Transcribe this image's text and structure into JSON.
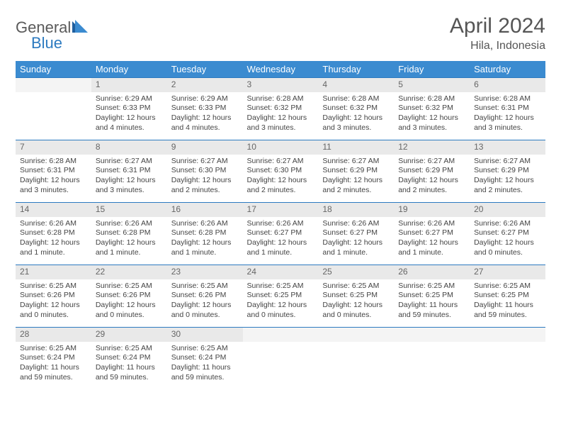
{
  "logo": {
    "general": "General",
    "blue": "Blue"
  },
  "title": "April 2024",
  "location": "Hila, Indonesia",
  "colors": {
    "header_bg": "#3b8bd0",
    "header_text": "#ffffff",
    "daynum_bg": "#e9e9e9",
    "daynum_text": "#666666",
    "border": "#2c7ac0",
    "body_text": "#444444",
    "logo_gray": "#5a5a5a",
    "logo_blue": "#2c7ac0",
    "title_color": "#555555"
  },
  "typography": {
    "title_fontsize": 30,
    "location_fontsize": 16,
    "header_fontsize": 13,
    "daynum_fontsize": 12,
    "body_fontsize": 10.5
  },
  "weekdays": [
    "Sunday",
    "Monday",
    "Tuesday",
    "Wednesday",
    "Thursday",
    "Friday",
    "Saturday"
  ],
  "weeks": [
    [
      {
        "n": "",
        "lines": []
      },
      {
        "n": "1",
        "lines": [
          "Sunrise: 6:29 AM",
          "Sunset: 6:33 PM",
          "Daylight: 12 hours and 4 minutes."
        ]
      },
      {
        "n": "2",
        "lines": [
          "Sunrise: 6:29 AM",
          "Sunset: 6:33 PM",
          "Daylight: 12 hours and 4 minutes."
        ]
      },
      {
        "n": "3",
        "lines": [
          "Sunrise: 6:28 AM",
          "Sunset: 6:32 PM",
          "Daylight: 12 hours and 3 minutes."
        ]
      },
      {
        "n": "4",
        "lines": [
          "Sunrise: 6:28 AM",
          "Sunset: 6:32 PM",
          "Daylight: 12 hours and 3 minutes."
        ]
      },
      {
        "n": "5",
        "lines": [
          "Sunrise: 6:28 AM",
          "Sunset: 6:32 PM",
          "Daylight: 12 hours and 3 minutes."
        ]
      },
      {
        "n": "6",
        "lines": [
          "Sunrise: 6:28 AM",
          "Sunset: 6:31 PM",
          "Daylight: 12 hours and 3 minutes."
        ]
      }
    ],
    [
      {
        "n": "7",
        "lines": [
          "Sunrise: 6:28 AM",
          "Sunset: 6:31 PM",
          "Daylight: 12 hours and 3 minutes."
        ]
      },
      {
        "n": "8",
        "lines": [
          "Sunrise: 6:27 AM",
          "Sunset: 6:31 PM",
          "Daylight: 12 hours and 3 minutes."
        ]
      },
      {
        "n": "9",
        "lines": [
          "Sunrise: 6:27 AM",
          "Sunset: 6:30 PM",
          "Daylight: 12 hours and 2 minutes."
        ]
      },
      {
        "n": "10",
        "lines": [
          "Sunrise: 6:27 AM",
          "Sunset: 6:30 PM",
          "Daylight: 12 hours and 2 minutes."
        ]
      },
      {
        "n": "11",
        "lines": [
          "Sunrise: 6:27 AM",
          "Sunset: 6:29 PM",
          "Daylight: 12 hours and 2 minutes."
        ]
      },
      {
        "n": "12",
        "lines": [
          "Sunrise: 6:27 AM",
          "Sunset: 6:29 PM",
          "Daylight: 12 hours and 2 minutes."
        ]
      },
      {
        "n": "13",
        "lines": [
          "Sunrise: 6:27 AM",
          "Sunset: 6:29 PM",
          "Daylight: 12 hours and 2 minutes."
        ]
      }
    ],
    [
      {
        "n": "14",
        "lines": [
          "Sunrise: 6:26 AM",
          "Sunset: 6:28 PM",
          "Daylight: 12 hours and 1 minute."
        ]
      },
      {
        "n": "15",
        "lines": [
          "Sunrise: 6:26 AM",
          "Sunset: 6:28 PM",
          "Daylight: 12 hours and 1 minute."
        ]
      },
      {
        "n": "16",
        "lines": [
          "Sunrise: 6:26 AM",
          "Sunset: 6:28 PM",
          "Daylight: 12 hours and 1 minute."
        ]
      },
      {
        "n": "17",
        "lines": [
          "Sunrise: 6:26 AM",
          "Sunset: 6:27 PM",
          "Daylight: 12 hours and 1 minute."
        ]
      },
      {
        "n": "18",
        "lines": [
          "Sunrise: 6:26 AM",
          "Sunset: 6:27 PM",
          "Daylight: 12 hours and 1 minute."
        ]
      },
      {
        "n": "19",
        "lines": [
          "Sunrise: 6:26 AM",
          "Sunset: 6:27 PM",
          "Daylight: 12 hours and 1 minute."
        ]
      },
      {
        "n": "20",
        "lines": [
          "Sunrise: 6:26 AM",
          "Sunset: 6:27 PM",
          "Daylight: 12 hours and 0 minutes."
        ]
      }
    ],
    [
      {
        "n": "21",
        "lines": [
          "Sunrise: 6:25 AM",
          "Sunset: 6:26 PM",
          "Daylight: 12 hours and 0 minutes."
        ]
      },
      {
        "n": "22",
        "lines": [
          "Sunrise: 6:25 AM",
          "Sunset: 6:26 PM",
          "Daylight: 12 hours and 0 minutes."
        ]
      },
      {
        "n": "23",
        "lines": [
          "Sunrise: 6:25 AM",
          "Sunset: 6:26 PM",
          "Daylight: 12 hours and 0 minutes."
        ]
      },
      {
        "n": "24",
        "lines": [
          "Sunrise: 6:25 AM",
          "Sunset: 6:25 PM",
          "Daylight: 12 hours and 0 minutes."
        ]
      },
      {
        "n": "25",
        "lines": [
          "Sunrise: 6:25 AM",
          "Sunset: 6:25 PM",
          "Daylight: 12 hours and 0 minutes."
        ]
      },
      {
        "n": "26",
        "lines": [
          "Sunrise: 6:25 AM",
          "Sunset: 6:25 PM",
          "Daylight: 11 hours and 59 minutes."
        ]
      },
      {
        "n": "27",
        "lines": [
          "Sunrise: 6:25 AM",
          "Sunset: 6:25 PM",
          "Daylight: 11 hours and 59 minutes."
        ]
      }
    ],
    [
      {
        "n": "28",
        "lines": [
          "Sunrise: 6:25 AM",
          "Sunset: 6:24 PM",
          "Daylight: 11 hours and 59 minutes."
        ]
      },
      {
        "n": "29",
        "lines": [
          "Sunrise: 6:25 AM",
          "Sunset: 6:24 PM",
          "Daylight: 11 hours and 59 minutes."
        ]
      },
      {
        "n": "30",
        "lines": [
          "Sunrise: 6:25 AM",
          "Sunset: 6:24 PM",
          "Daylight: 11 hours and 59 minutes."
        ]
      },
      {
        "n": "",
        "lines": []
      },
      {
        "n": "",
        "lines": []
      },
      {
        "n": "",
        "lines": []
      },
      {
        "n": "",
        "lines": []
      }
    ]
  ]
}
